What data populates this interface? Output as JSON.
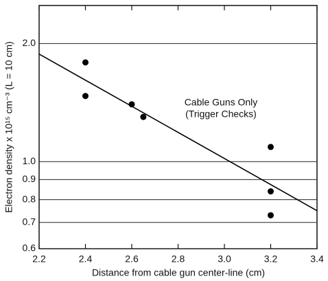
{
  "chart_data": {
    "type": "scatter",
    "xlabel": "Distance from cable gun center-line  (cm)",
    "ylabel": "Electron density x 10¹⁵ cm⁻³  (L = 10 cm)",
    "annotation": [
      "Cable Guns Only",
      "(Trigger Checks)"
    ],
    "log_y": true,
    "grid": true,
    "color": "#000000",
    "xlim": [
      2.2,
      3.4
    ],
    "xticks": [
      2.2,
      2.4,
      2.6,
      2.8,
      {
        "value": 3,
        "label": "3.0"
      },
      3.2,
      3.4
    ],
    "ylim": [
      0.6,
      2.5
    ],
    "yticks": [
      0.6,
      0.7,
      0.8,
      0.9,
      {
        "value": 1,
        "label": "1.0"
      },
      {
        "value": 2,
        "label": "2.0"
      }
    ],
    "points": {
      "x": [
        2.4,
        2.4,
        2.6,
        2.65,
        3.2,
        3.2,
        3.2
      ],
      "y": [
        1.79,
        1.47,
        1.4,
        1.3,
        1.09,
        0.84,
        0.73
      ]
    },
    "fit_line": {
      "x": [
        2.2,
        3.4
      ],
      "y": [
        1.88,
        0.75
      ]
    }
  }
}
